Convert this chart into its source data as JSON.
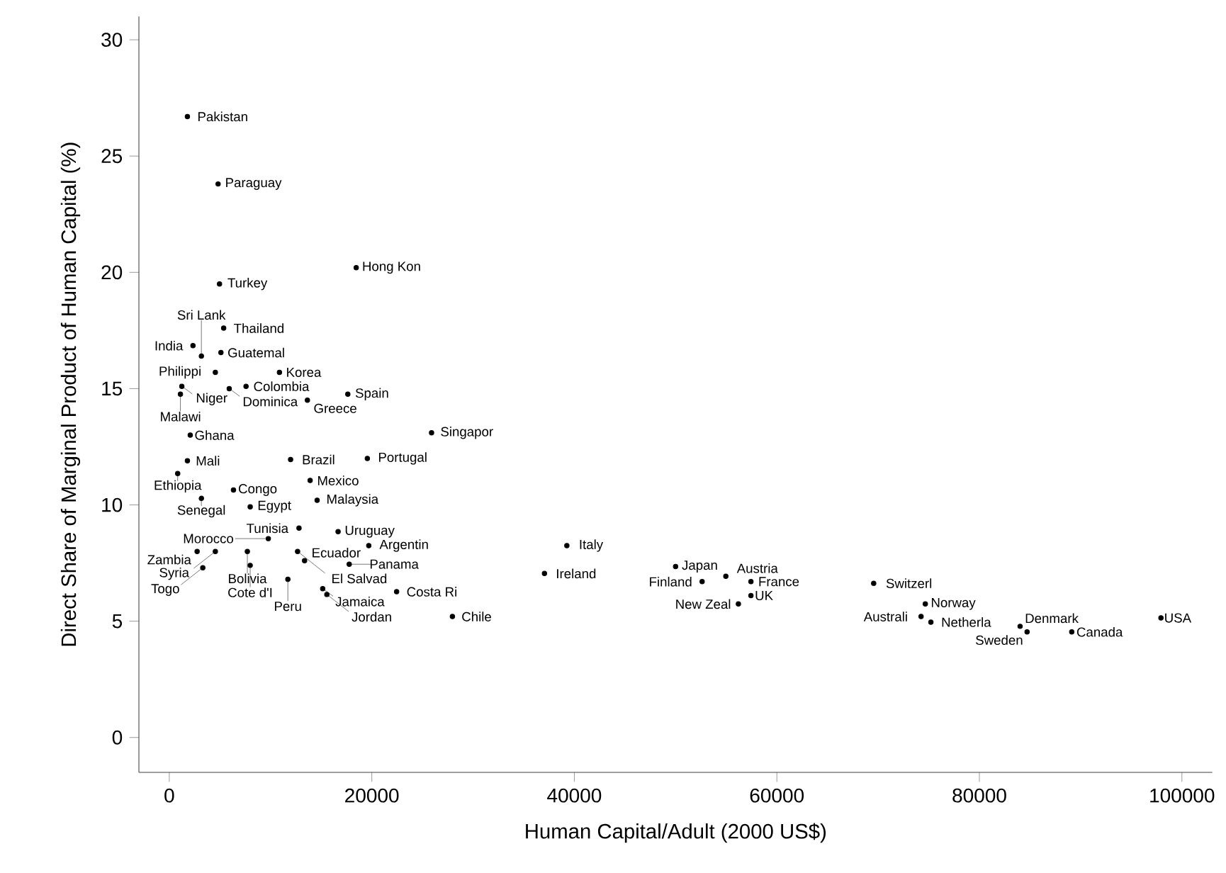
{
  "chart_data": {
    "type": "scatter",
    "xlabel": "Human Capital/Adult (2000 US$)",
    "ylabel": "Direct Share of Marginal Product of Human Capital (%)",
    "xlim": [
      -3000,
      103000
    ],
    "ylim": [
      -1.5,
      31
    ],
    "xticks": [
      0,
      20000,
      40000,
      60000,
      80000,
      100000
    ],
    "yticks": [
      0,
      5,
      10,
      15,
      20,
      25,
      30
    ],
    "grid": false,
    "marker": "circle",
    "series": [
      {
        "color": "#000000",
        "x": [
          1790,
          4820,
          4960,
          18460,
          5370,
          2340,
          5100,
          3170,
          4550,
          10880,
          1240,
          7580,
          5920,
          1100,
          13640,
          17630,
          2070,
          25900,
          1790,
          830,
          11980,
          19560,
          13910,
          6340,
          3170,
          7990,
          14600,
          12810,
          16670,
          9780,
          19700,
          2750,
          4550,
          7710,
          12670,
          3310,
          7990,
          13360,
          17770,
          11710,
          15150,
          15560,
          22450,
          27960,
          39260,
          37050,
          50000,
          52620,
          54960,
          57440,
          57440,
          56200,
          69560,
          74660,
          74240,
          75210,
          84020,
          84710,
          89120,
          97930
        ],
        "values": [
          26.7,
          23.8,
          19.5,
          20.2,
          17.6,
          16.85,
          16.55,
          16.4,
          15.7,
          15.7,
          15.1,
          15.1,
          15.0,
          14.76,
          14.5,
          14.76,
          13.0,
          13.1,
          11.9,
          11.35,
          11.95,
          12.0,
          11.05,
          10.64,
          10.28,
          9.92,
          10.2,
          9.0,
          8.85,
          8.55,
          8.25,
          8.0,
          8.0,
          8.0,
          8.0,
          7.3,
          7.4,
          7.6,
          7.45,
          6.8,
          6.4,
          6.15,
          6.27,
          5.2,
          8.25,
          7.05,
          7.35,
          6.7,
          6.93,
          6.7,
          6.1,
          5.74,
          6.63,
          5.74,
          5.2,
          4.96,
          4.78,
          4.54,
          4.54,
          5.14
        ],
        "value_labels": [
          "Pakistan",
          "Paraguay",
          "Turkey",
          "Hong Kon",
          "Thailand",
          "India",
          "Guatemal",
          "Sri Lank",
          "Philippi",
          "Korea",
          "Niger",
          "Colombia",
          "Dominica",
          "Malawi",
          "Greece",
          "Spain",
          "Ghana",
          "Singapor",
          "Mali",
          "Ethiopia",
          "Brazil",
          "Portugal",
          "Mexico",
          "Congo",
          "Senegal",
          "Egypt",
          "Malaysia",
          "Tunisia",
          "Uruguay",
          "Morocco",
          "Argentin",
          "Zambia",
          "Syria",
          "Bolivia",
          "El Salvad",
          "Togo",
          "Cote d'I",
          "Ecuador",
          "Panama",
          "Peru",
          "Jamaica",
          "Jordan",
          "Costa Ri",
          "Chile",
          "Italy",
          "Ireland",
          "Japan",
          "Finland",
          "Austria",
          "France",
          "UK",
          "New Zeal",
          "Switzerl",
          "Norway",
          "Australi",
          "Netherla",
          "Denmark",
          "Sweden",
          "Canada",
          "USA"
        ]
      }
    ]
  }
}
